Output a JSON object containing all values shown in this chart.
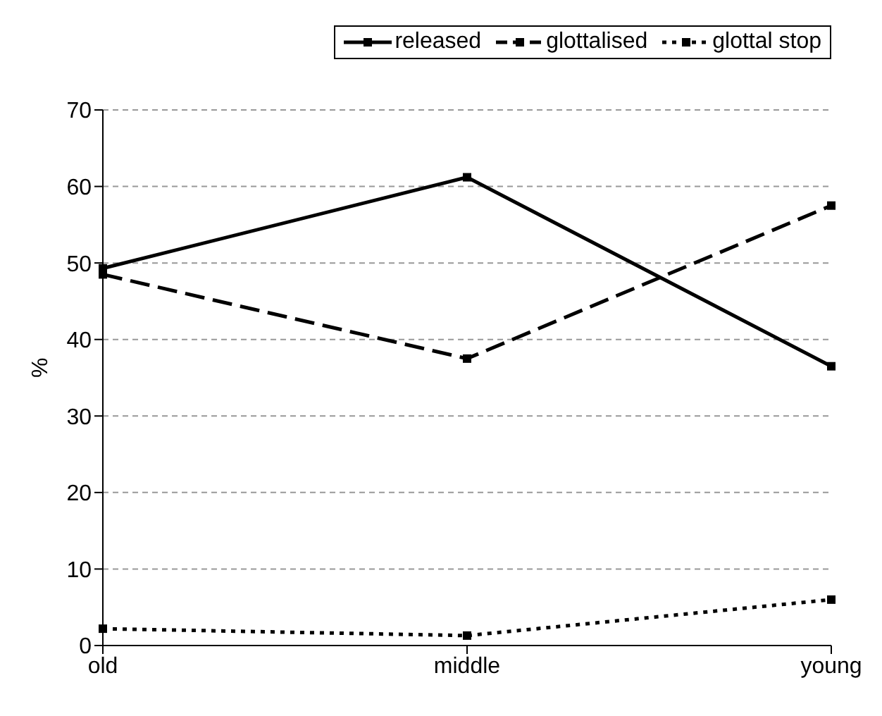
{
  "chart_data": {
    "type": "line",
    "ylabel": "%",
    "categories": [
      "old",
      "middle",
      "young"
    ],
    "series": [
      {
        "name": "released",
        "color": "#000000",
        "values": [
          49.3,
          61.2,
          36.5
        ],
        "line_style": "solid"
      },
      {
        "name": "glottalised",
        "color": "#000000",
        "values": [
          48.5,
          37.5,
          57.5
        ],
        "line_style": "dashed"
      },
      {
        "name": "glottal stop",
        "color": "#000000",
        "values": [
          2.2,
          1.3,
          6
        ],
        "line_style": "dotted"
      }
    ],
    "ylim": [
      0,
      70
    ],
    "yticks": [
      0,
      10,
      20,
      30,
      40,
      50,
      60,
      70
    ],
    "grid": "y",
    "legend": "top right",
    "marker": "square"
  }
}
